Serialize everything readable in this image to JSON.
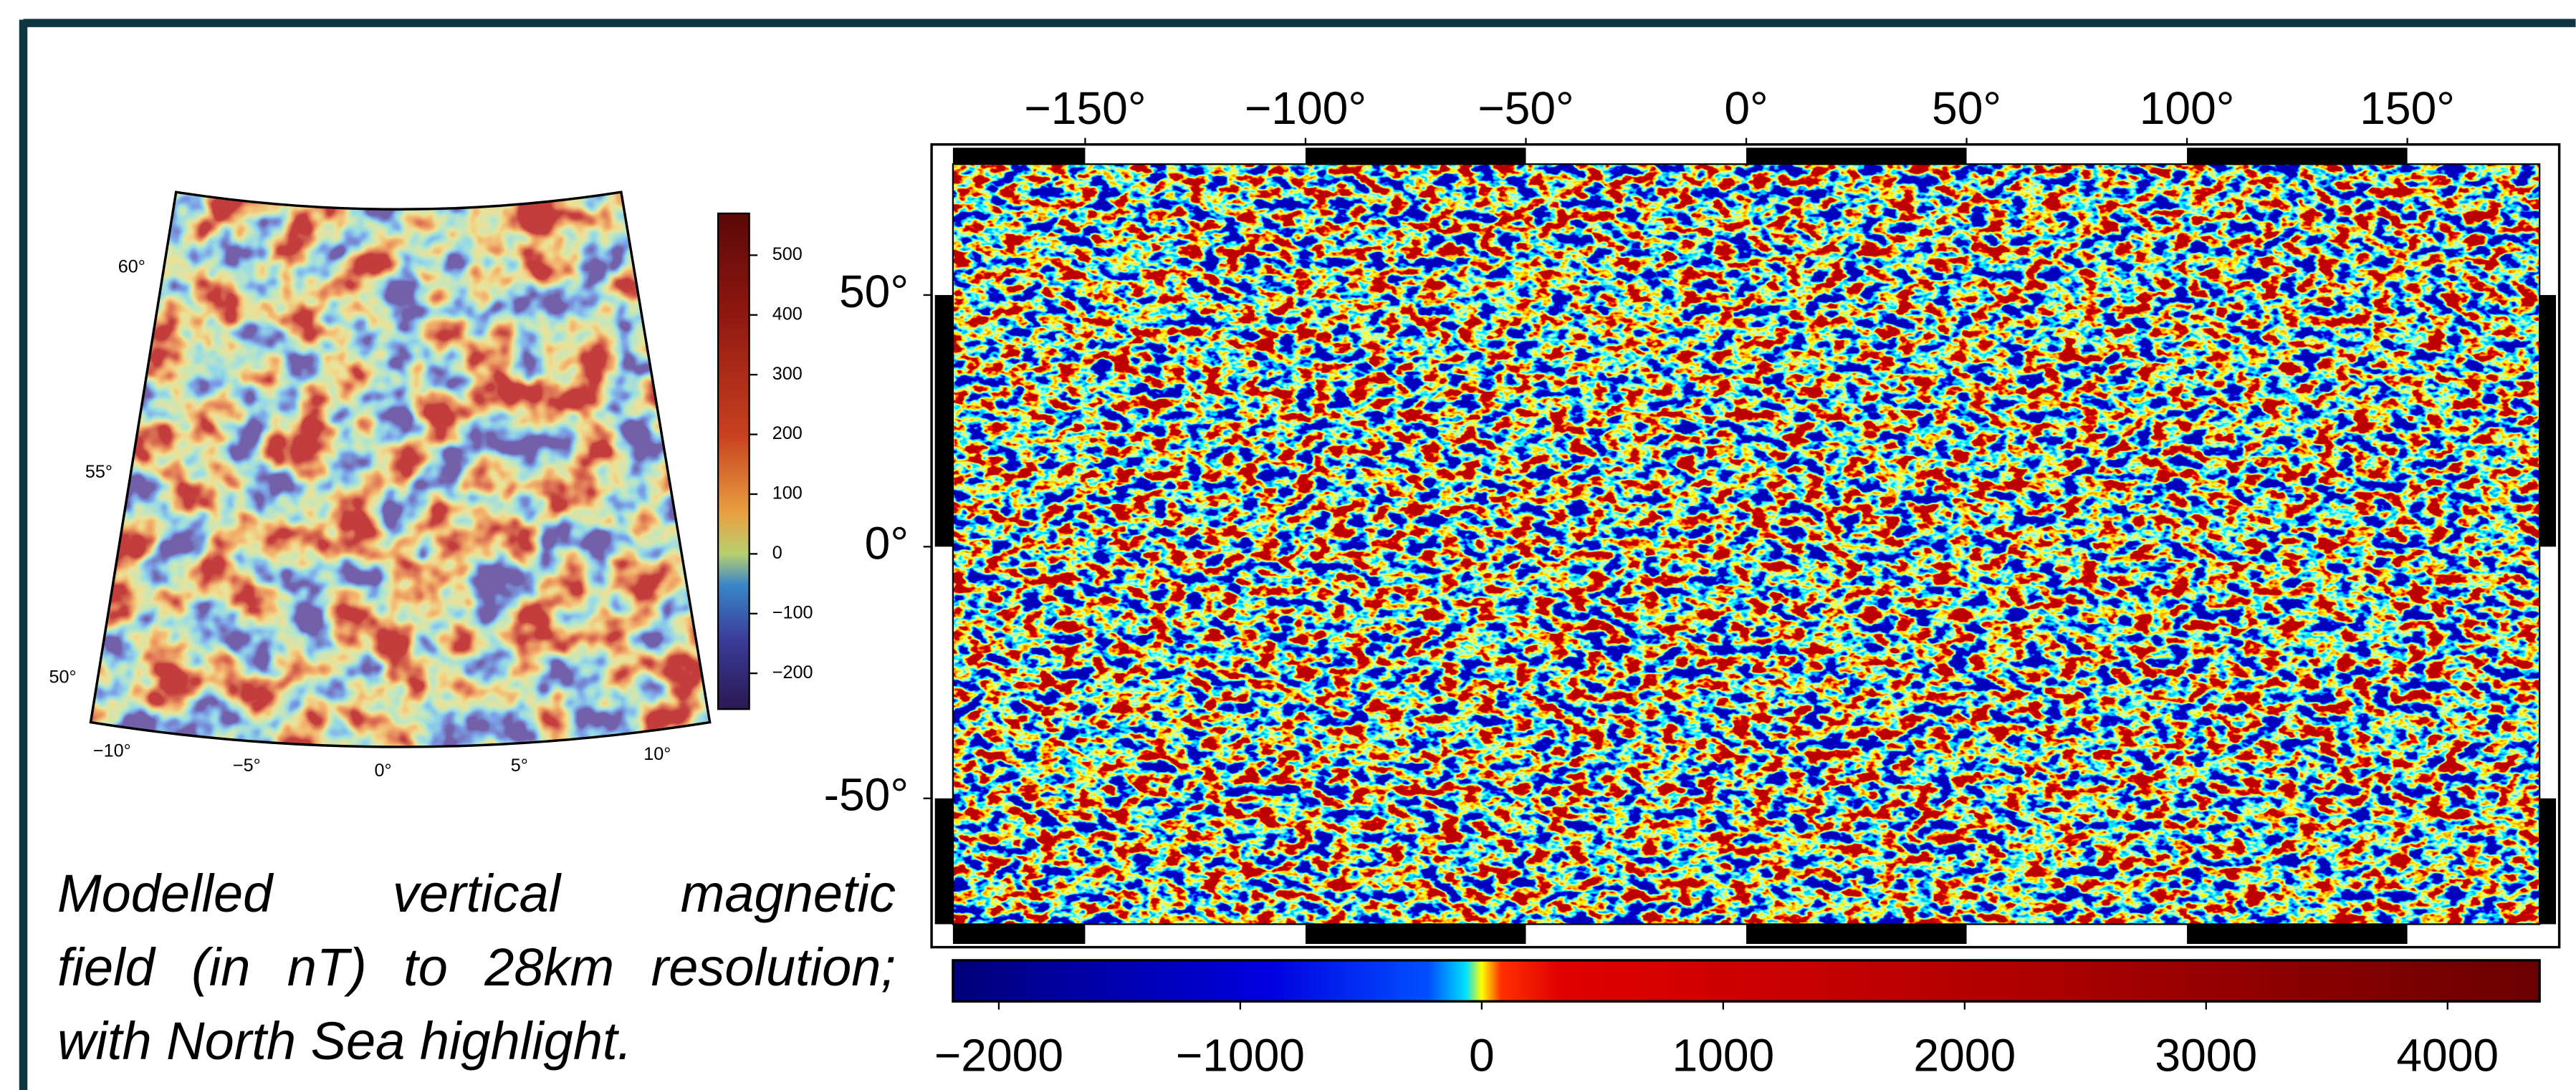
{
  "regional_map": {
    "lat_labels": [
      "60°",
      "55°",
      "50°"
    ],
    "lon_labels": [
      "−10°",
      "−5°",
      "0°",
      "5°",
      "10°"
    ],
    "colorbar": {
      "range": [
        -260,
        570
      ],
      "ticks": [
        500,
        400,
        300,
        200,
        100,
        0,
        {
          "value": -100,
          "label": "−100"
        },
        {
          "value": -200,
          "label": "−200"
        }
      ]
    }
  },
  "global_map": {
    "xlim": [
      -180,
      180
    ],
    "ylim": [
      -75,
      76
    ],
    "xticks": [
      {
        "value": -150,
        "label": "−150°"
      },
      {
        "value": -100,
        "label": "−100°"
      },
      {
        "value": -50,
        "label": "−50°"
      },
      {
        "value": 0,
        "label": "0°"
      },
      {
        "value": 50,
        "label": "50°"
      },
      {
        "value": 100,
        "label": "100°"
      },
      {
        "value": 150,
        "label": "150°"
      }
    ],
    "yticks": [
      {
        "value": 50,
        "label": "50°"
      },
      {
        "value": 0,
        "label": "0°"
      },
      {
        "value": -50,
        "label": "-50°"
      }
    ],
    "colorbar": {
      "range": [
        -2190,
        4381
      ],
      "ticks": [
        {
          "value": -2000,
          "label": "−2000"
        },
        {
          "value": -1000,
          "label": "−1000"
        },
        0,
        1000,
        2000,
        3000,
        4000
      ]
    }
  },
  "caption": {
    "lines": [
      "Modelled vertical magnetic",
      "field (in nT) to 28km resolution;",
      "with North Sea highlight."
    ]
  }
}
